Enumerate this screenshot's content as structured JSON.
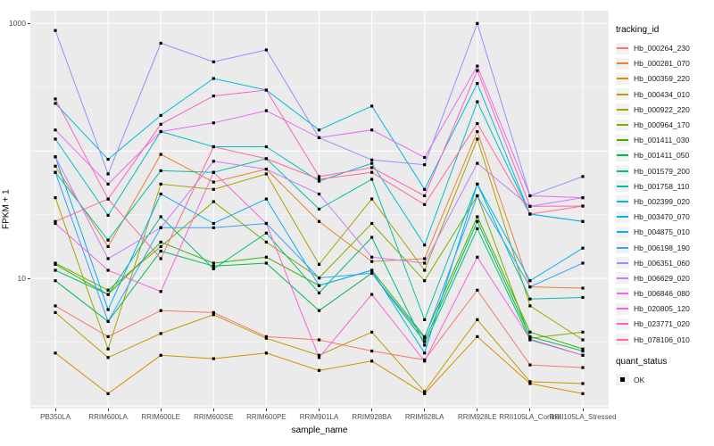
{
  "figure": {
    "y_axis": {
      "title": "FPKM + 1",
      "scale": "log10"
    },
    "x_axis": {
      "title": "sample_name"
    },
    "panel_bg": "#EBEBEB",
    "grid_color": "#FFFFFF"
  },
  "legend": {
    "tracking_title": "tracking_id",
    "quant_title": "quant_status",
    "quant_items": [
      {
        "label": "OK",
        "marker": "black-square"
      }
    ]
  },
  "chart_data": {
    "type": "line",
    "title": "",
    "xlabel": "sample_name",
    "ylabel": "FPKM + 1",
    "y_scale": "log10",
    "ylim": [
      1,
      1250
    ],
    "grid": true,
    "legend_position": "right",
    "marker": {
      "shape": "square",
      "color": "#000000",
      "meaning": "quant_status OK"
    },
    "y_ticks": [
      {
        "label": "1000",
        "value": 1000
      },
      {
        "label": "10",
        "value": 10
      }
    ],
    "x_categories": [
      "PB350LA",
      "RRIM600LA",
      "RRIM600LE",
      "RRIM600SE",
      "RRIM600PE",
      "RRIM901LA",
      "RRIM928BA",
      "RRIM928LA",
      "RRIM928LE",
      "RRII105LA_Control",
      "RRII105LA_Stressed"
    ],
    "series": [
      {
        "name": "Hb_000264_230",
        "color": "#F8766D",
        "values": [
          6.1,
          3.5,
          5.6,
          5.4,
          3.5,
          3.3,
          2.7,
          2.3,
          8.1,
          2.1,
          2.0
        ]
      },
      {
        "name": "Hb_000281_070",
        "color": "#EA8331",
        "values": [
          76,
          17.8,
          94,
          57,
          72,
          28,
          13.6,
          14.3,
          142,
          8.6,
          8.4
        ]
      },
      {
        "name": "Hb_000359_220",
        "color": "#D89000",
        "values": [
          2.6,
          1.25,
          2.5,
          2.35,
          2.6,
          1.9,
          2.25,
          1.25,
          3.5,
          1.5,
          1.25
        ]
      },
      {
        "name": "Hb_000434_010",
        "color": "#C09B00",
        "values": [
          5.4,
          2.4,
          3.7,
          5.2,
          3.4,
          2.5,
          3.8,
          1.3,
          4.75,
          1.55,
          1.5
        ]
      },
      {
        "name": "Hb_000922_220",
        "color": "#A3A500",
        "values": [
          43,
          2.8,
          55,
          50,
          66,
          12.9,
          42,
          11.6,
          124,
          6.1,
          3.3
        ]
      },
      {
        "name": "Hb_000964_170",
        "color": "#7CAE00",
        "values": [
          13.2,
          8.1,
          17.8,
          40,
          19.3,
          10.1,
          27,
          9.6,
          44.5,
          3.4,
          3.8
        ]
      },
      {
        "name": "Hb_001411_030",
        "color": "#39B600",
        "values": [
          12.9,
          7.5,
          19.3,
          13.2,
          14.7,
          8.8,
          11.6,
          3.5,
          30.5,
          3.8,
          2.8
        ]
      },
      {
        "name": "Hb_001411_050",
        "color": "#00BB4E",
        "values": [
          9.6,
          4.6,
          16.4,
          12.5,
          13.2,
          5.6,
          11.0,
          3.2,
          28,
          3.5,
          2.7
        ]
      },
      {
        "name": "Hb_001579_200",
        "color": "#00BF7D",
        "values": [
          11.6,
          7.5,
          30.5,
          11.9,
          22.7,
          7.7,
          21,
          3.0,
          24.6,
          3.3,
          2.5
        ]
      },
      {
        "name": "Hb_001758_110",
        "color": "#00C1A3",
        "values": [
          68,
          20,
          70,
          68,
          87,
          35,
          60,
          4.75,
          55,
          6.9,
          7.1
        ]
      },
      {
        "name": "Hb_002399_020",
        "color": "#00BFC4",
        "values": [
          124,
          31.3,
          142,
          108,
          108,
          58,
          80,
          18.3,
          243,
          32,
          28
        ]
      },
      {
        "name": "Hb_003470_070",
        "color": "#00BAE0",
        "values": [
          236,
          86,
          190,
          370,
          300,
          146,
          225,
          50,
          339,
          32,
          28
        ]
      },
      {
        "name": "Hb_004875_010",
        "color": "#00B0F6",
        "values": [
          90,
          5.7,
          46,
          27,
          42,
          8.8,
          11.6,
          2.6,
          55,
          9.6,
          17.3
        ]
      },
      {
        "name": "Hb_006198_190",
        "color": "#35A2FF",
        "values": [
          68,
          4.6,
          25,
          25,
          27,
          10.1,
          11.0,
          3.4,
          44.5,
          8.6,
          13.2
        ]
      },
      {
        "name": "Hb_006351_060",
        "color": "#9590FF",
        "values": [
          880,
          66,
          700,
          500,
          620,
          127,
          85,
          78,
          1000,
          44.5,
          63
        ]
      },
      {
        "name": "Hb_006629_020",
        "color": "#C77CFF",
        "values": [
          90,
          14.3,
          25,
          83,
          72,
          46,
          14.7,
          13.2,
          80,
          36.8,
          43
        ]
      },
      {
        "name": "Hb_006846_080",
        "color": "#E76BF3",
        "values": [
          146,
          55,
          142,
          166,
          207,
          127,
          146,
          89,
          463,
          44.5,
          43
        ]
      },
      {
        "name": "Hb_020805_120",
        "color": "#FA62DB",
        "values": [
          27,
          11.6,
          7.9,
          68,
          27,
          2.4,
          7.5,
          2.25,
          14.7,
          3.35,
          2.5
        ]
      },
      {
        "name": "Hb_023771_020",
        "color": "#FF62BC",
        "values": [
          256,
          42,
          162,
          270,
          300,
          63,
          74,
          44.5,
          427,
          36.8,
          37
        ]
      },
      {
        "name": "Hb_078106_010",
        "color": "#FF6A98",
        "values": [
          28,
          42,
          14.3,
          108,
          87,
          60,
          68,
          38,
          164,
          32,
          37
        ]
      }
    ]
  }
}
